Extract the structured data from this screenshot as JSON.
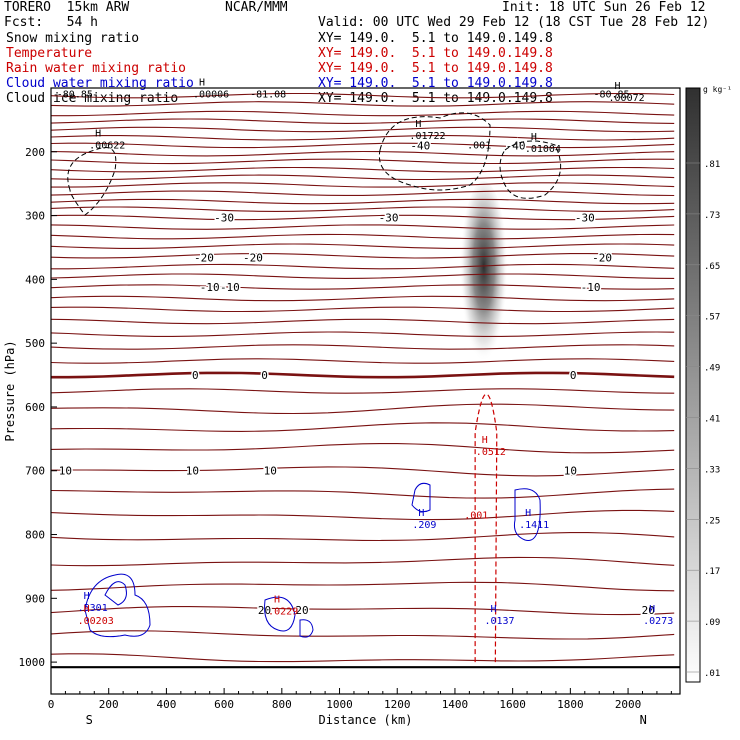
{
  "header": {
    "model": "TORERO  15km ARW",
    "org": "NCAR/MMM",
    "init": "Init: 18 UTC Sun 26 Feb 12",
    "fcst": "Fcst:   54 h",
    "valid": "Valid: 00 UTC Wed 29 Feb 12 (18 CST Tue 28 Feb 12)",
    "fields": [
      {
        "name": "Snow mixing ratio",
        "color": "#000000"
      },
      {
        "name": "Temperature",
        "color": "#cc0000"
      },
      {
        "name": "Rain water mixing ratio",
        "color": "#cc0000"
      },
      {
        "name": "Cloud water mixing ratio",
        "color": "#0000cc"
      },
      {
        "name": "Cloud ice mixing ratio",
        "color": "#000000"
      }
    ],
    "xy": "XY= 149.0.  5.1 to 149.0.149.8"
  },
  "chart_data": {
    "type": "contour",
    "xlabel": "Distance (km)",
    "ylabel": "Pressure (hPa)",
    "xlim": [
      0,
      2180
    ],
    "ylim": [
      1050,
      100
    ],
    "xticks": [
      0,
      200,
      400,
      600,
      800,
      1000,
      1200,
      1400,
      1600,
      1800,
      2000
    ],
    "yticks": [
      200,
      300,
      400,
      500,
      600,
      700,
      800,
      900,
      1000
    ],
    "dir_left": "S",
    "dir_right": "N",
    "colorbar": {
      "unit": "g kg⁻¹",
      "ticks": [
        ".81",
        ".73",
        ".65",
        ".57",
        ".49",
        ".41",
        ".33",
        ".25",
        ".17",
        ".09",
        ".01"
      ]
    },
    "temperature_contours": [
      {
        "label": "-40",
        "x": [
          1280,
          1610
        ]
      },
      {
        "label": "-30",
        "x": [
          600,
          1170,
          1850
        ]
      },
      {
        "label": "-20",
        "x": [
          530,
          700,
          1910
        ]
      },
      {
        "label": "-10",
        "x": [
          550,
          620,
          1870
        ]
      },
      {
        "label": "0",
        "x": [
          500,
          740,
          1810
        ]
      },
      {
        "label": "10",
        "x": [
          50,
          490,
          760,
          1800
        ]
      },
      {
        "label": "20",
        "x": [
          740,
          870,
          2070
        ]
      }
    ],
    "maxima": [
      {
        "label": "H",
        "value": ".00622",
        "x": 160,
        "p": 195,
        "color": "#000000"
      },
      {
        "label": "H",
        "value": ".00006",
        "x": 520,
        "p": 115,
        "color": "#000000"
      },
      {
        "label": "H",
        "value": ".01722",
        "x": 1270,
        "p": 180,
        "color": "#000000"
      },
      {
        "label": "H",
        "value": ".01004",
        "x": 1670,
        "p": 200,
        "color": "#000000"
      },
      {
        "label": "H",
        "value": ".00072",
        "x": 1960,
        "p": 120,
        "color": "#000000"
      },
      {
        "label": "H",
        "value": ".0512",
        "x": 1500,
        "p": 675,
        "color": "#cc0000"
      },
      {
        "label": "H",
        "value": ".209",
        "x": 1280,
        "p": 790,
        "color": "#0000cc"
      },
      {
        "label": "H",
        "value": ".1411",
        "x": 1650,
        "p": 790,
        "color": "#0000cc"
      },
      {
        "label": "H",
        "value": ".0137",
        "x": 1530,
        "p": 940,
        "color": "#0000cc"
      },
      {
        "label": "H",
        "value": ".0273",
        "x": 2080,
        "p": 940,
        "color": "#0000cc"
      },
      {
        "label": "H",
        "value": ".5301",
        "x": 120,
        "p": 920,
        "color": "#0000cc"
      },
      {
        "label": "H",
        "value": ".00203",
        "x": 120,
        "p": 940,
        "color": "#cc0000"
      },
      {
        "label": "H",
        "value": ".0229",
        "x": 780,
        "p": 925,
        "color": "#cc0000"
      },
      {
        "label": "",
        "value": ".001",
        "x": 1470,
        "p": 195,
        "color": "#000000"
      },
      {
        "label": "",
        "value": ".001",
        "x": 1460,
        "p": 775,
        "color": "#cc0000"
      }
    ],
    "edge_labels": [
      {
        "value": "-80.85",
        "x": 20,
        "p": 115
      },
      {
        "value": "-81.08",
        "x": 690,
        "p": 115
      },
      {
        "value": "-80.85",
        "x": 1880,
        "p": 115
      }
    ]
  }
}
